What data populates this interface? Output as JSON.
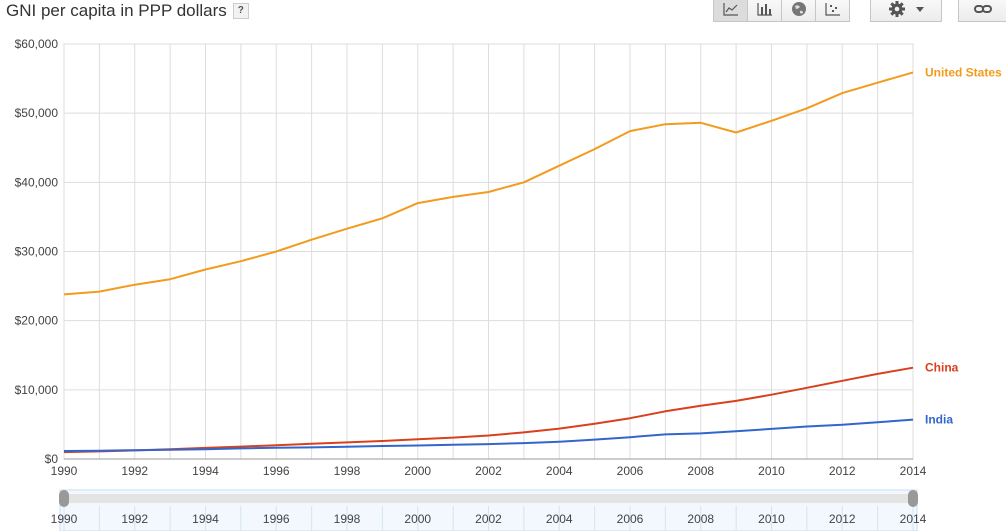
{
  "header": {
    "title": "GNI per capita in PPP dollars",
    "help_label": "?"
  },
  "toolbar": {
    "view_buttons": [
      {
        "name": "line-chart-view-button",
        "icon": "line-chart-icon",
        "active": true
      },
      {
        "name": "bar-chart-view-button",
        "icon": "bar-chart-icon",
        "active": false
      },
      {
        "name": "map-view-button",
        "icon": "globe-icon",
        "active": false
      },
      {
        "name": "scatter-view-button",
        "icon": "scatter-plot-icon",
        "active": false
      }
    ],
    "settings_icon": "gear-icon",
    "link_icon": "link-icon"
  },
  "colors": {
    "united_states": "#f29b1d",
    "china": "#d9401e",
    "india": "#3366cc",
    "grid": "#dddddd",
    "axis_text": "#444444"
  },
  "chart_data": {
    "type": "line",
    "title": "GNI per capita in PPP dollars",
    "xlabel": "",
    "ylabel": "",
    "xlim": [
      1990,
      2014
    ],
    "ylim": [
      0,
      60000
    ],
    "grid": true,
    "x": [
      1990,
      1991,
      1992,
      1993,
      1994,
      1995,
      1996,
      1997,
      1998,
      1999,
      2000,
      2001,
      2002,
      2003,
      2004,
      2005,
      2006,
      2007,
      2008,
      2009,
      2010,
      2011,
      2012,
      2013,
      2014
    ],
    "x_ticks": [
      "1990",
      "1992",
      "1994",
      "1996",
      "1998",
      "2000",
      "2002",
      "2004",
      "2006",
      "2008",
      "2010",
      "2012",
      "2014"
    ],
    "y_ticks": [
      "$0",
      "$10,000",
      "$20,000",
      "$30,000",
      "$40,000",
      "$50,000",
      "$60,000"
    ],
    "series": [
      {
        "name": "United States",
        "color": "#f29b1d",
        "values": [
          23800,
          24200,
          25200,
          26000,
          27400,
          28600,
          30000,
          31700,
          33300,
          34800,
          37000,
          37900,
          38600,
          40000,
          42400,
          44800,
          47400,
          48400,
          48600,
          47200,
          48900,
          50700,
          52900,
          54400,
          55900
        ]
      },
      {
        "name": "China",
        "color": "#d9401e",
        "values": [
          1000,
          1100,
          1250,
          1400,
          1600,
          1800,
          2000,
          2200,
          2400,
          2600,
          2850,
          3100,
          3400,
          3850,
          4400,
          5100,
          5900,
          6900,
          7700,
          8400,
          9300,
          10300,
          11300,
          12300,
          13200
        ]
      },
      {
        "name": "India",
        "color": "#3366cc",
        "values": [
          1150,
          1200,
          1270,
          1330,
          1420,
          1530,
          1620,
          1680,
          1780,
          1880,
          1950,
          2050,
          2150,
          2300,
          2500,
          2800,
          3150,
          3550,
          3700,
          4000,
          4350,
          4700,
          4950,
          5300,
          5700
        ]
      }
    ]
  },
  "timeline": {
    "start": "1990",
    "end": "2014",
    "labels": [
      "1990",
      "1992",
      "1994",
      "1996",
      "1998",
      "2000",
      "2002",
      "2004",
      "2006",
      "2008",
      "2010",
      "2012",
      "2014"
    ]
  }
}
